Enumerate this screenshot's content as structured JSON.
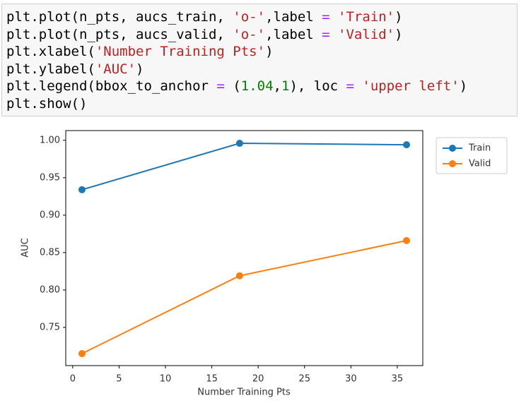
{
  "code": {
    "lines": [
      [
        {
          "text": "plt.plot(n_pts, aucs_train, "
        },
        {
          "text": "'o-'",
          "color": "#ba2121"
        },
        {
          "text": ",label "
        },
        {
          "text": "= ",
          "color": "#aa22ff"
        },
        {
          "text": "'Train'",
          "color": "#ba2121"
        },
        {
          "text": ")"
        }
      ],
      [
        {
          "text": "plt.plot(n_pts, aucs_valid, "
        },
        {
          "text": "'o-'",
          "color": "#ba2121"
        },
        {
          "text": ",label "
        },
        {
          "text": "= ",
          "color": "#aa22ff"
        },
        {
          "text": "'Valid'",
          "color": "#ba2121"
        },
        {
          "text": ")"
        }
      ],
      [
        {
          "text": "plt.xlabel("
        },
        {
          "text": "'Number Training Pts'",
          "color": "#ba2121"
        },
        {
          "text": ")"
        }
      ],
      [
        {
          "text": "plt.ylabel("
        },
        {
          "text": "'AUC'",
          "color": "#ba2121"
        },
        {
          "text": ")"
        }
      ],
      [
        {
          "text": "plt.legend(bbox_to_anchor "
        },
        {
          "text": "=",
          "color": "#aa22ff"
        },
        {
          "text": " ("
        },
        {
          "text": "1.04",
          "color": "#008000"
        },
        {
          "text": ","
        },
        {
          "text": "1",
          "color": "#008000"
        },
        {
          "text": "), loc "
        },
        {
          "text": "= ",
          "color": "#aa22ff"
        },
        {
          "text": "'upper left'",
          "color": "#ba2121"
        },
        {
          "text": ")"
        }
      ],
      [
        {
          "text": "plt.show()"
        }
      ]
    ]
  },
  "chart_data": {
    "type": "line",
    "x_label": "Number Training Pts",
    "y_label": "AUC",
    "x": [
      1,
      18,
      36
    ],
    "series": [
      {
        "name": "Train",
        "color": "#1f77b4",
        "values": [
          0.934,
          0.996,
          0.994
        ]
      },
      {
        "name": "Valid",
        "color": "#ff7f0e",
        "values": [
          0.715,
          0.819,
          0.866
        ]
      }
    ],
    "xlim": [
      -0.75,
      37.75
    ],
    "xticks": [
      0,
      5,
      10,
      15,
      20,
      25,
      30,
      35
    ],
    "ylim": [
      0.699,
      1.013
    ],
    "yticks": [
      0.75,
      {
        "value": 0.8,
        "label": "0.80"
      },
      0.85,
      {
        "value": 0.9,
        "label": "0.90"
      },
      0.95,
      {
        "value": 1,
        "label": "1.00"
      }
    ],
    "legend": "outside-upper-left",
    "marker": "o"
  }
}
